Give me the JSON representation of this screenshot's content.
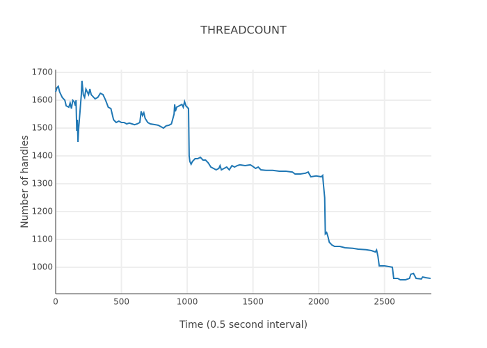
{
  "chart_data": {
    "type": "line",
    "title": "THREADCOUNT",
    "x_label": "Time (0.5 second interval)",
    "y_label": "Number of handles",
    "color": "#1f77b4",
    "grid": true,
    "xlim": [
      0,
      2856
    ],
    "ylim": [
      905,
      1710
    ],
    "xticks": [
      0,
      500,
      1000,
      1500,
      2000,
      2500
    ],
    "yticks": [
      1000,
      1100,
      1200,
      1300,
      1400,
      1500,
      1600,
      1700
    ],
    "x": [
      0,
      10,
      20,
      30,
      50,
      70,
      80,
      100,
      110,
      120,
      130,
      140,
      150,
      155,
      160,
      165,
      170,
      175,
      185,
      195,
      200,
      210,
      220,
      230,
      240,
      250,
      260,
      270,
      290,
      300,
      320,
      340,
      360,
      380,
      400,
      420,
      440,
      460,
      480,
      500,
      520,
      540,
      560,
      580,
      600,
      620,
      640,
      650,
      660,
      670,
      680,
      700,
      720,
      760,
      780,
      800,
      820,
      840,
      860,
      880,
      900,
      905,
      910,
      920,
      940,
      960,
      970,
      980,
      990,
      1000,
      1010,
      1015,
      1020,
      1030,
      1040,
      1060,
      1080,
      1100,
      1120,
      1140,
      1160,
      1180,
      1200,
      1220,
      1240,
      1250,
      1260,
      1280,
      1300,
      1320,
      1340,
      1360,
      1380,
      1400,
      1440,
      1480,
      1500,
      1520,
      1540,
      1560,
      1600,
      1650,
      1700,
      1750,
      1800,
      1820,
      1860,
      1900,
      1920,
      1940,
      1980,
      2020,
      2030,
      2035,
      2045,
      2050,
      2060,
      2070,
      2080,
      2100,
      2120,
      2160,
      2200,
      2260,
      2300,
      2360,
      2400,
      2430,
      2440,
      2450,
      2460,
      2500,
      2540,
      2560,
      2570,
      2600,
      2620,
      2660,
      2690,
      2700,
      2720,
      2740,
      2780,
      2790,
      2820,
      2850
    ],
    "values": [
      1630,
      1645,
      1650,
      1630,
      1610,
      1600,
      1580,
      1575,
      1590,
      1570,
      1600,
      1595,
      1580,
      1600,
      1490,
      1530,
      1450,
      1500,
      1560,
      1620,
      1670,
      1620,
      1610,
      1640,
      1630,
      1620,
      1640,
      1620,
      1610,
      1605,
      1610,
      1625,
      1620,
      1600,
      1575,
      1570,
      1530,
      1520,
      1525,
      1520,
      1520,
      1515,
      1518,
      1515,
      1512,
      1515,
      1520,
      1560,
      1545,
      1555,
      1535,
      1520,
      1515,
      1512,
      1510,
      1505,
      1500,
      1508,
      1510,
      1515,
      1550,
      1585,
      1560,
      1575,
      1580,
      1585,
      1575,
      1595,
      1580,
      1575,
      1570,
      1400,
      1380,
      1370,
      1380,
      1390,
      1390,
      1395,
      1385,
      1385,
      1375,
      1360,
      1355,
      1350,
      1355,
      1365,
      1350,
      1355,
      1360,
      1350,
      1365,
      1360,
      1365,
      1368,
      1365,
      1368,
      1362,
      1355,
      1360,
      1350,
      1348,
      1348,
      1345,
      1345,
      1342,
      1335,
      1335,
      1338,
      1342,
      1325,
      1328,
      1325,
      1330,
      1300,
      1250,
      1120,
      1125,
      1110,
      1090,
      1080,
      1075,
      1075,
      1070,
      1068,
      1065,
      1063,
      1060,
      1055,
      1062,
      1040,
      1005,
      1005,
      1002,
      1000,
      960,
      960,
      955,
      955,
      960,
      975,
      978,
      960,
      958,
      965,
      962,
      960
    ]
  }
}
